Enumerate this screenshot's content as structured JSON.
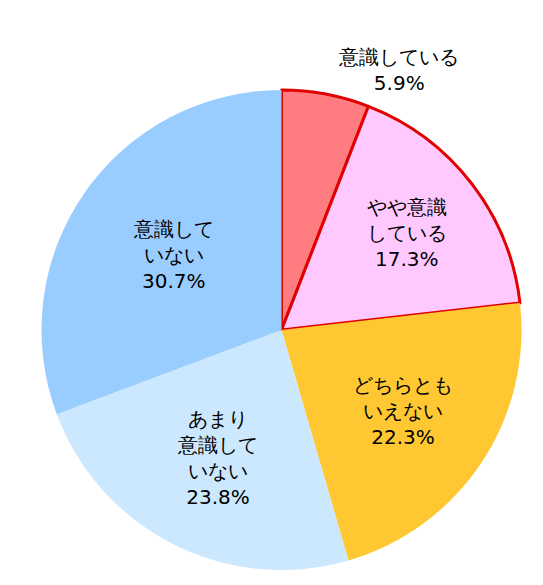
{
  "chart_data": {
    "type": "pie",
    "categories": [
      "意識している",
      "やや意識\nしている",
      "どちらとも\nいえない",
      "あまり\n意識して\nいない",
      "意識して\nいない"
    ],
    "values": [
      5.9,
      17.3,
      22.3,
      23.8,
      30.7
    ],
    "value_labels": [
      "5.9%",
      "17.3%",
      "22.3%",
      "23.8%",
      "30.7%"
    ],
    "colors": [
      "#ff7c80",
      "#ffc8ff",
      "#ffc833",
      "#cce8ff",
      "#99ccff"
    ],
    "data_labels": true
  }
}
